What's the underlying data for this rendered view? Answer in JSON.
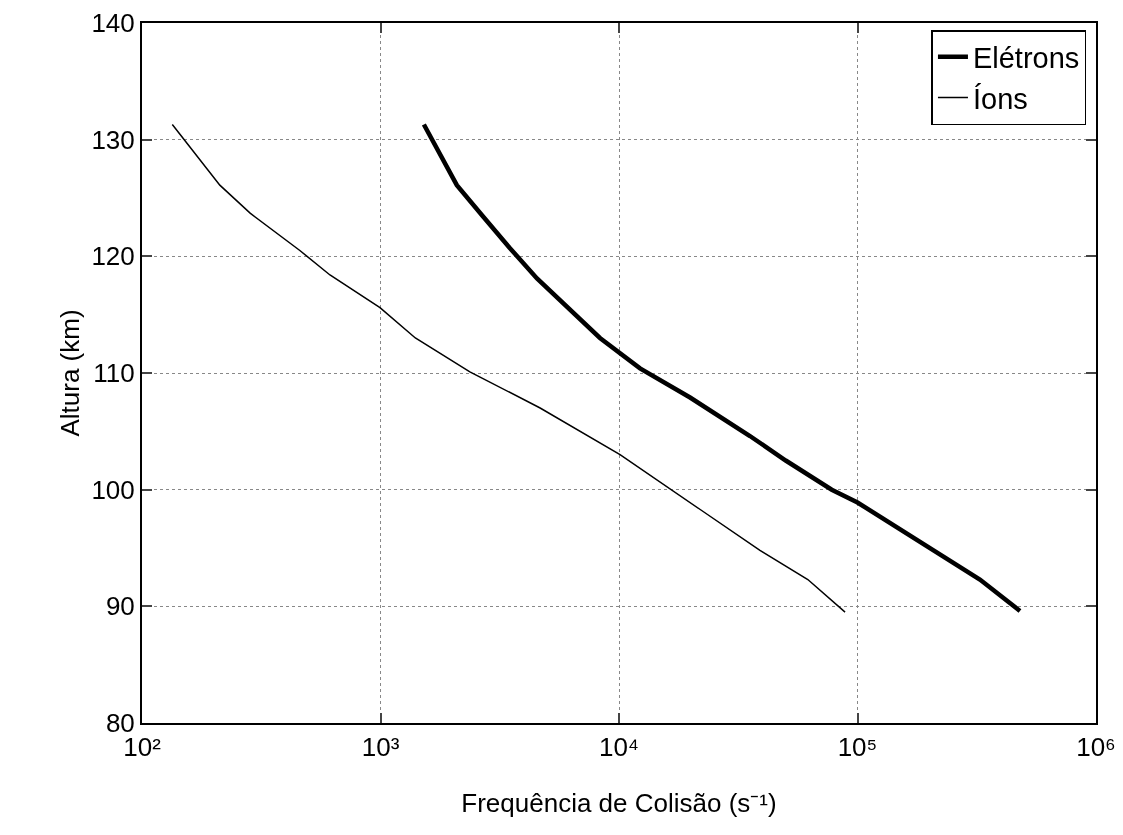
{
  "chart_data": {
    "type": "line",
    "xlabel": "Frequência de Colisão (s⁻¹)",
    "ylabel": "Altura (km)",
    "log": "x",
    "grid": true,
    "legend": "top right",
    "line_style": "solid",
    "marker": "none",
    "xlim": [
      100,
      1000000
    ],
    "xticks": [
      {
        "value": 100,
        "label": "10²"
      },
      {
        "value": 1000,
        "label": "10³"
      },
      {
        "value": 10000,
        "label": "10⁴"
      },
      {
        "value": 100000,
        "label": "10⁵"
      },
      {
        "value": 1000000,
        "label": "10⁶"
      }
    ],
    "ylim": [
      80,
      140
    ],
    "yticks": [
      80,
      90,
      100,
      110,
      120,
      130,
      140
    ],
    "series": [
      {
        "name": "Elétrons",
        "color": "#000000",
        "x": [
          1520,
          2090,
          2670,
          3490,
          4530,
          8320,
          12250,
          19860,
          35400,
          50000,
          78000,
          100000,
          326000,
          480000
        ],
        "values": [
          131.3,
          126.1,
          123.5,
          120.7,
          118.1,
          113.0,
          110.4,
          107.9,
          104.6,
          102.5,
          100.0,
          98.9,
          92.3,
          89.6
        ]
      },
      {
        "name": "Íons",
        "color": "#000000",
        "x": [
          134,
          212,
          284,
          459,
          614,
          995,
          1400,
          2370,
          4670,
          10100,
          21900,
          39000,
          61900,
          88700
        ],
        "values": [
          131.3,
          126.1,
          123.7,
          120.5,
          118.4,
          115.6,
          113.0,
          110.1,
          107.0,
          103.0,
          98.3,
          94.8,
          92.3,
          89.5
        ]
      }
    ]
  }
}
